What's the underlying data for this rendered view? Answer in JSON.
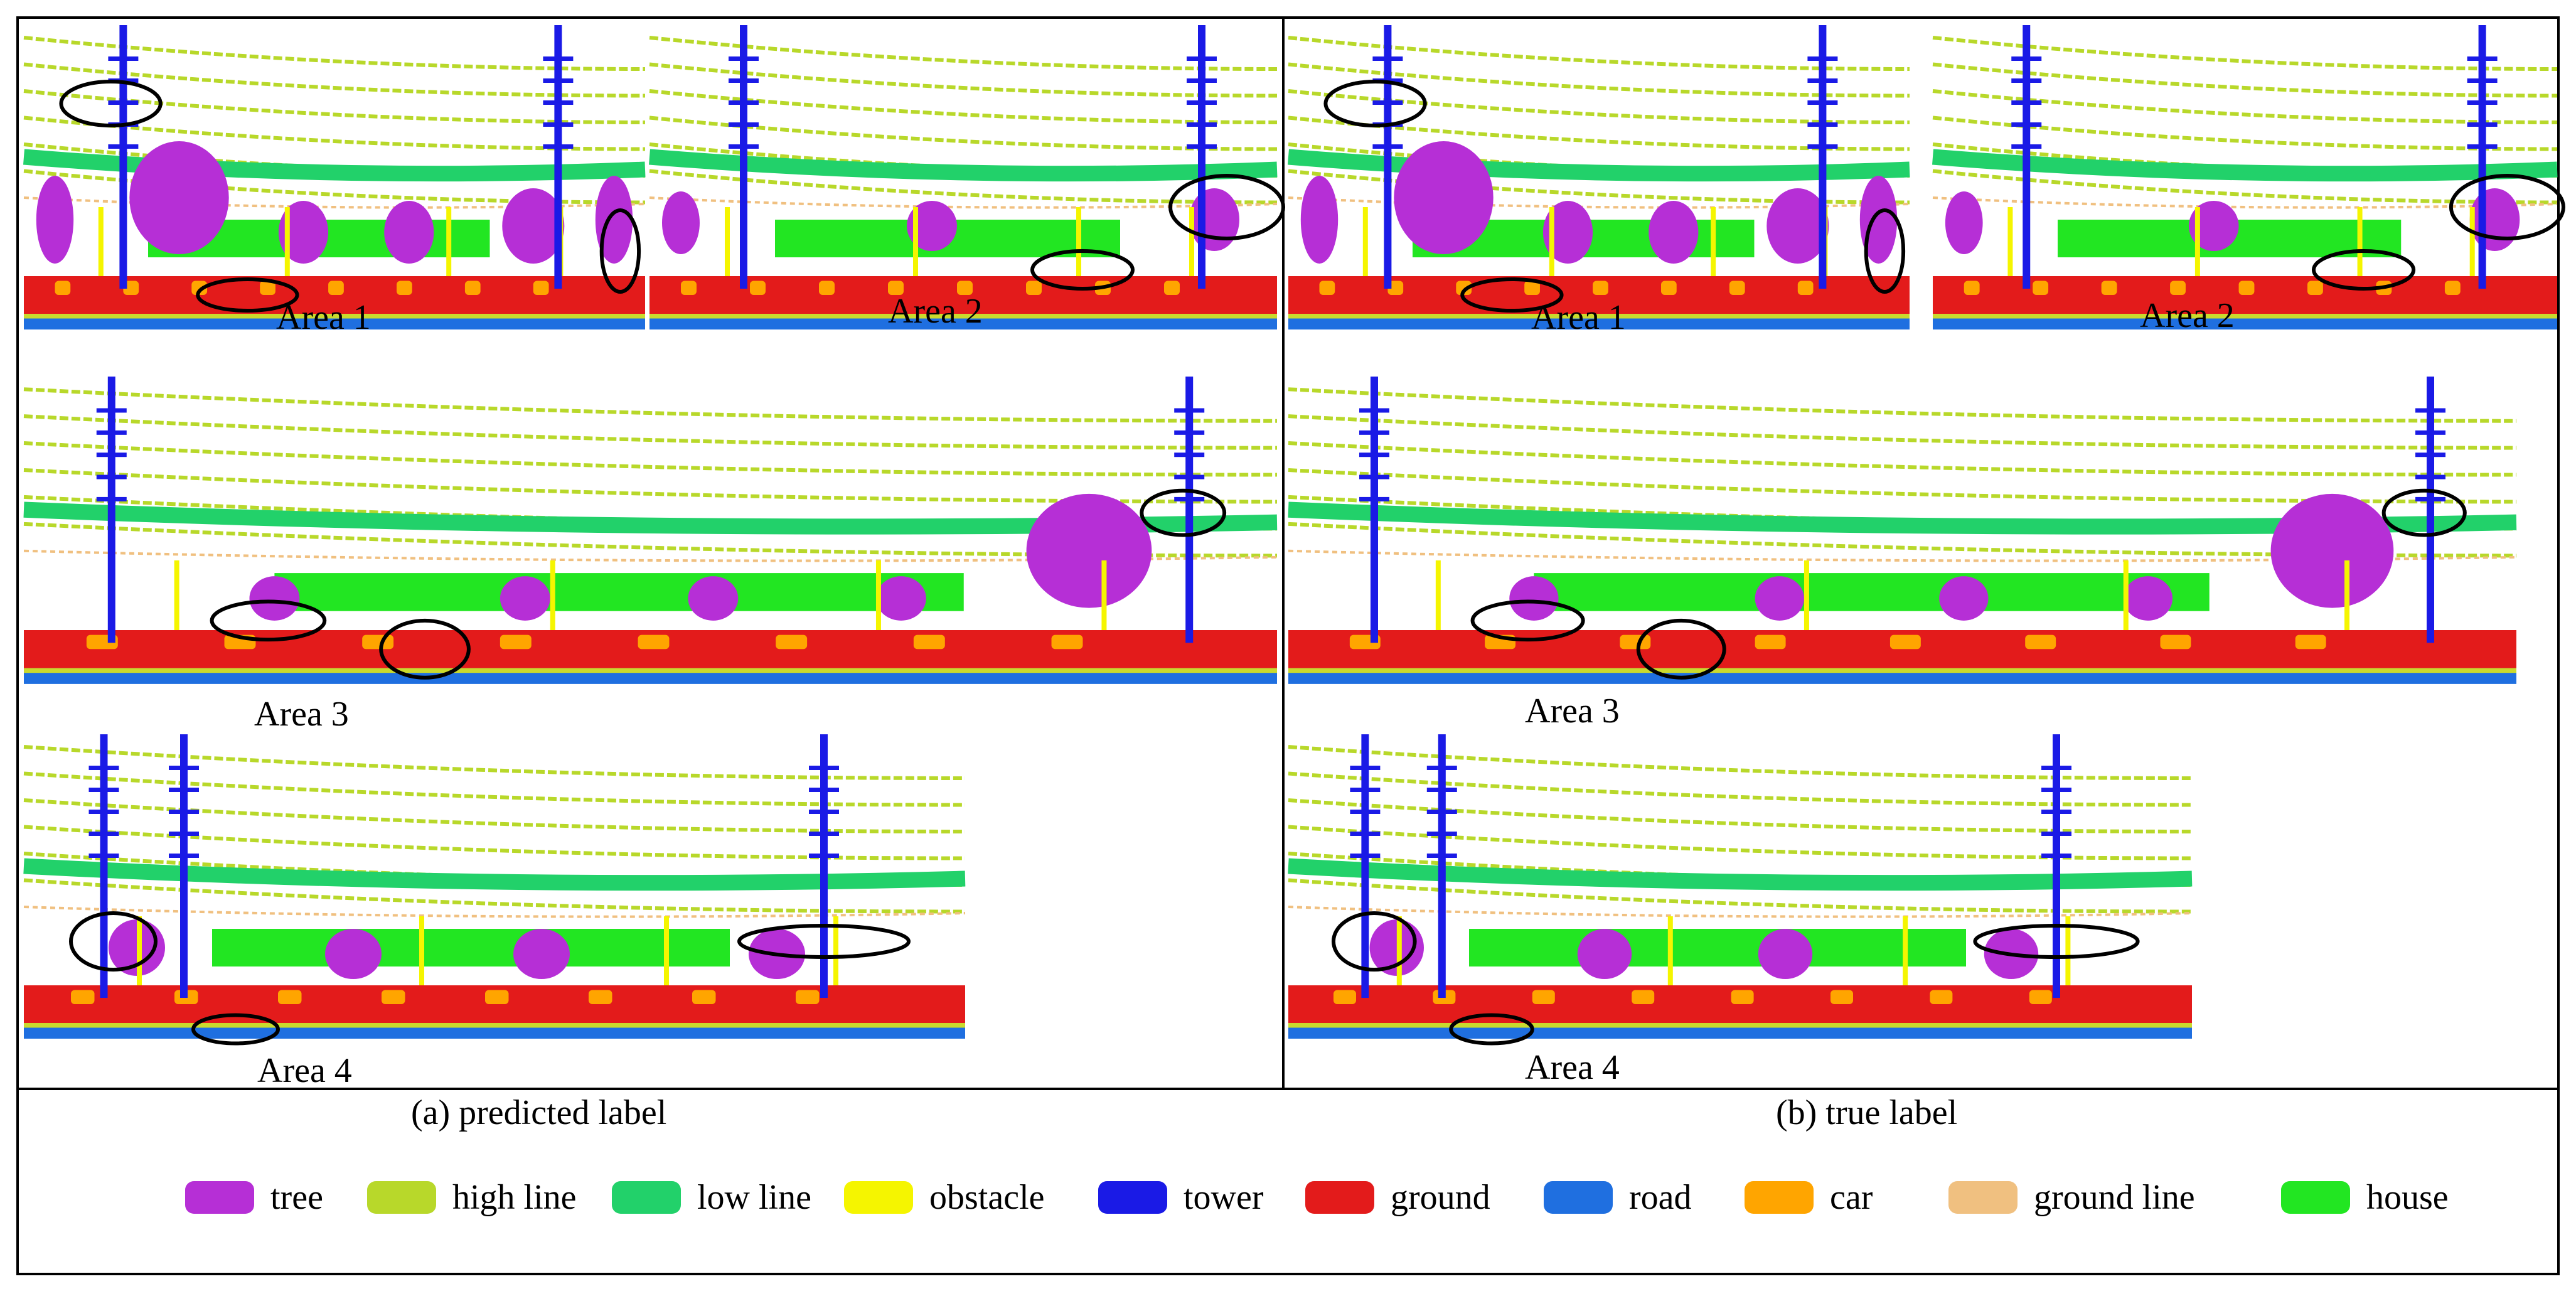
{
  "panel_a": {
    "caption": "(a) predicted label",
    "areas": [
      "Area 1",
      "Area 2",
      "Area 3",
      "Area 4"
    ]
  },
  "panel_b": {
    "caption": "(b) true label",
    "areas": [
      "Area 1",
      "Area 2",
      "Area 3",
      "Area 4"
    ]
  },
  "legend": [
    {
      "label": "tree",
      "color": "#b62fd6"
    },
    {
      "label": "high line",
      "color": "#b8d82a"
    },
    {
      "label": "low line",
      "color": "#22d16a"
    },
    {
      "label": "obstacle",
      "color": "#f5f500"
    },
    {
      "label": "tower",
      "color": "#1a1ae6"
    },
    {
      "label": "ground",
      "color": "#e31b1b"
    },
    {
      "label": "road",
      "color": "#1f6fe0"
    },
    {
      "label": "car",
      "color": "#ffa500"
    },
    {
      "label": "ground line",
      "color": "#f0c080"
    },
    {
      "label": "house",
      "color": "#22e622"
    }
  ]
}
